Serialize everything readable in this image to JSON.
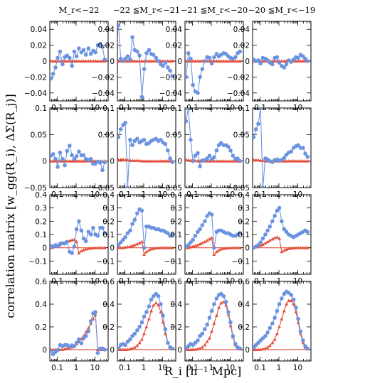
{
  "figure": {
    "ylabel": "correlation matrix  [w_gg(R_i), ΔΣ(R_j)]",
    "xlabel": "R_i  [h⁻¹ Mpc]"
  },
  "colors": {
    "observed": "#6b93e0",
    "model": "#e5503c",
    "zero_line": "#e5503c"
  },
  "chart_data": {
    "type": "scatter",
    "x_scale": "log",
    "xlim": [
      0.04,
      50
    ],
    "x_ticks": [
      0.1,
      1,
      10
    ],
    "x_tick_labels": [
      "0.1",
      "1",
      "10"
    ],
    "columns": [
      {
        "title": "M_r<−22"
      },
      {
        "title": "−22 ≦M_r<−21"
      },
      {
        "title": "−21 ≦M_r<−20"
      },
      {
        "title": "−20 ≦M_r<−19"
      }
    ],
    "rows": [
      {
        "ylim": [
          -0.05,
          0.05
        ],
        "y_ticks": [
          -0.04,
          -0.02,
          0,
          0.02,
          0.04
        ],
        "y_tick_labels": [
          "−0.04",
          "−0.02",
          "0",
          "0.02",
          "0.04"
        ]
      },
      {
        "ylim": [
          -0.05,
          0.1
        ],
        "y_ticks": [
          -0.05,
          0,
          0.05,
          0.1
        ],
        "y_tick_labels": [
          "−0.05",
          "0",
          "0.05",
          "0.1"
        ]
      },
      {
        "ylim": [
          -0.2,
          0.4
        ],
        "y_ticks": [
          -0.1,
          0,
          0.1,
          0.2,
          0.3,
          0.4
        ],
        "y_tick_labels": [
          "−0.1",
          "0",
          "0.1",
          "0.2",
          "0.3",
          "0.4"
        ]
      },
      {
        "ylim": [
          -0.1,
          0.6
        ],
        "y_ticks": [
          0,
          0.2,
          0.4,
          0.6
        ],
        "y_tick_labels": [
          "0",
          "0.2",
          "0.4",
          "0.6"
        ]
      }
    ],
    "x": [
      0.045,
      0.06,
      0.08,
      0.105,
      0.14,
      0.19,
      0.25,
      0.33,
      0.45,
      0.6,
      0.8,
      1.05,
      1.4,
      1.9,
      2.5,
      3.3,
      4.5,
      6,
      8,
      10.5,
      14,
      19,
      25,
      33
    ],
    "panels": [
      [
        {
          "observed": [
            -0.022,
            -0.016,
            -0.008,
            0.004,
            0.012,
            -0.004,
            0.005,
            0.007,
            0.004,
            -0.006,
            0.012,
            0.006,
            0.016,
            0.011,
            0.014,
            0.008,
            0.016,
            0.009,
            0.013,
            0.011,
            0.02,
            0.021,
            0.018,
            0.002
          ],
          "model": [
            0,
            0,
            0,
            0,
            0,
            0,
            0,
            0,
            0,
            0,
            0,
            0,
            0,
            0,
            0,
            0,
            0,
            0,
            0,
            0,
            0,
            0,
            0,
            0
          ]
        },
        {
          "observed": [
            0.01,
            0.013,
            0.004,
            -0.011,
            0.016,
            0.004,
            -0.008,
            0.019,
            0.029,
            0.011,
            0.004,
            0.009,
            0.018,
            0.011,
            0.011,
            0.004,
            0.002,
            0.004,
            -0.005,
            -0.005,
            -0.001,
            -0.003,
            -0.017,
            -0.002
          ],
          "model": [
            0,
            0,
            0,
            0,
            0,
            0,
            0,
            0,
            0,
            0,
            0,
            0,
            0,
            0,
            0,
            0,
            0,
            0,
            0,
            0,
            0,
            0,
            0,
            0
          ]
        },
        {
          "observed": [
            0.015,
            0.008,
            0.02,
            0.01,
            0.03,
            0.035,
            0.032,
            0.045,
            -0.03,
            -0.04,
            0.01,
            0.14,
            0.2,
            0.13,
            0.07,
            0.05,
            0.12,
            0.1,
            0.15,
            0.1,
            0.09,
            0.15,
            0.15,
            0.11
          ],
          "model": [
            0.0,
            0.005,
            0.01,
            0.015,
            0.022,
            0.03,
            0.037,
            0.045,
            0.052,
            0.058,
            0.06,
            0.045,
            -0.04,
            -0.025,
            -0.016,
            -0.01,
            -0.006,
            -0.004,
            -0.002,
            -0.001,
            0,
            0,
            0,
            0
          ]
        },
        {
          "observed": [
            -0.012,
            -0.04,
            -0.02,
            -0.004,
            0.04,
            0.03,
            0.04,
            0.04,
            0.025,
            0.038,
            0.03,
            0.06,
            0.09,
            0.055,
            0.1,
            0.12,
            0.16,
            0.25,
            0.32,
            0.33,
            -0.03,
            0.01,
            0.01,
            0.0
          ],
          "model": [
            0,
            0,
            0,
            0,
            0,
            0.002,
            0.004,
            0.008,
            0.014,
            0.022,
            0.034,
            0.05,
            0.07,
            0.095,
            0.12,
            0.155,
            0.19,
            0.23,
            0.27,
            0.31,
            0.0,
            0.0,
            0.0,
            0.0
          ]
        }
      ],
      [
        {
          "observed": [
            0.045,
            0.003,
            0.0,
            0.003,
            0.006,
            0.002,
            0.03,
            0.014,
            0.012,
            0.007,
            -0.045,
            -0.01,
            0.01,
            0.014,
            0.009,
            0.008,
            0.004,
            0.0,
            -0.004,
            -0.006,
            -0.002,
            -0.008,
            -0.012,
            -0.019
          ],
          "model": [
            0,
            0,
            0,
            0,
            0,
            0,
            0,
            0,
            0,
            0,
            0,
            0,
            0,
            0,
            0,
            0,
            0,
            0,
            0,
            0,
            0,
            0,
            0,
            0
          ]
        },
        {
          "observed": [
            0.045,
            0.06,
            0.068,
            0.072,
            -0.05,
            0.04,
            0.03,
            0.038,
            0.042,
            0.035,
            0.038,
            0.04,
            0.032,
            0.034,
            0.038,
            0.04,
            0.042,
            0.038,
            0.04,
            0.035,
            0.032,
            0.02,
            0.005,
            -0.002
          ],
          "model": [
            0.002,
            0.003,
            0.003,
            0.002,
            0.002,
            0.001,
            0.001,
            0.001,
            0.001,
            0.001,
            0,
            0,
            0,
            0,
            0,
            0,
            0,
            0,
            0,
            0,
            0,
            0,
            0,
            0
          ]
        },
        {
          "observed": [
            0.02,
            0.04,
            0.06,
            0.08,
            0.11,
            0.13,
            0.18,
            0.21,
            0.26,
            0.29,
            0.28,
            0.0,
            0.16,
            0.16,
            0.15,
            0.15,
            0.14,
            0.14,
            0.13,
            0.13,
            0.12,
            0.11,
            0.09,
            0.1
          ],
          "model": [
            0.0,
            0.0,
            0.0,
            0.003,
            0.006,
            0.01,
            0.015,
            0.021,
            0.028,
            0.036,
            0.045,
            -0.05,
            -0.03,
            -0.018,
            -0.01,
            -0.006,
            -0.003,
            -0.002,
            -0.001,
            0,
            0,
            0,
            0,
            0
          ]
        },
        {
          "observed": [
            0.01,
            0.04,
            0.05,
            0.04,
            0.07,
            0.09,
            0.12,
            0.14,
            0.17,
            0.2,
            0.24,
            0.29,
            0.33,
            0.38,
            0.44,
            0.47,
            0.49,
            0.47,
            0.4,
            0.3,
            0.18,
            0.06,
            0.02,
            0.01
          ],
          "model": [
            0,
            0,
            0,
            0,
            0.002,
            0.005,
            0.01,
            0.02,
            0.035,
            0.06,
            0.09,
            0.14,
            0.2,
            0.27,
            0.34,
            0.39,
            0.41,
            0.39,
            0.33,
            0.24,
            0.14,
            0.06,
            0.02,
            0.005
          ]
        }
      ],
      [
        {
          "observed": [
            -0.02,
            0.01,
            0.003,
            -0.03,
            -0.038,
            -0.04,
            -0.02,
            -0.01,
            0.0,
            0.005,
            0.004,
            -0.003,
            0.005,
            0.009,
            0.006,
            0.008,
            0.01,
            0.009,
            0.006,
            0.004,
            0.003,
            0.005,
            0.01,
            0.012
          ],
          "model": [
            0,
            0,
            0,
            0,
            0,
            0,
            0,
            0,
            0,
            0,
            0,
            0,
            0,
            0,
            0,
            0,
            0,
            0,
            0,
            0,
            0,
            0,
            0,
            0
          ]
        },
        {
          "observed": [
            0.075,
            0.1,
            0.04,
            0.0,
            0.01,
            0.015,
            -0.01,
            0.001,
            0.002,
            0.005,
            0.01,
            0.003,
            0.007,
            0.02,
            0.03,
            0.034,
            0.03,
            0.03,
            0.027,
            0.02,
            0.01,
            0.004,
            0.005,
            0.0
          ],
          "model": [
            0.002,
            0.002,
            0.001,
            0.001,
            0.001,
            0,
            0,
            0,
            0,
            0,
            0,
            0,
            0,
            0,
            0,
            0,
            0,
            0,
            0,
            0,
            0,
            0,
            0,
            0
          ]
        },
        {
          "observed": [
            0.01,
            0.02,
            0.04,
            0.06,
            0.09,
            0.12,
            0.14,
            0.17,
            0.2,
            0.24,
            0.26,
            0.25,
            0.0,
            0.12,
            0.13,
            0.13,
            0.12,
            0.11,
            0.11,
            0.1,
            0.09,
            0.09,
            0.1,
            0.11
          ],
          "model": [
            0.0,
            0.0,
            0.005,
            0.01,
            0.015,
            0.02,
            0.028,
            0.036,
            0.045,
            0.055,
            0.065,
            0.075,
            -0.05,
            -0.03,
            -0.018,
            -0.01,
            -0.006,
            -0.003,
            -0.002,
            -0.001,
            0,
            0,
            0,
            0
          ]
        },
        {
          "observed": [
            0.01,
            0.03,
            0.05,
            0.04,
            0.06,
            0.08,
            0.12,
            0.14,
            0.18,
            0.22,
            0.28,
            0.34,
            0.4,
            0.45,
            0.48,
            0.49,
            0.47,
            0.42,
            0.33,
            0.24,
            0.12,
            0.05,
            0.02,
            0.01
          ],
          "model": [
            0,
            0,
            0,
            0,
            0.002,
            0.005,
            0.01,
            0.02,
            0.04,
            0.07,
            0.1,
            0.16,
            0.23,
            0.3,
            0.37,
            0.41,
            0.42,
            0.39,
            0.31,
            0.21,
            0.11,
            0.04,
            0.01,
            0.005
          ]
        }
      ],
      [
        {
          "observed": [
            0.002,
            0.0,
            0.001,
            -0.003,
            0.004,
            0.003,
            0.001,
            -0.002,
            -0.004,
            0.004,
            0.005,
            -0.002,
            -0.006,
            -0.008,
            -0.004,
            0.001,
            -0.001,
            0.002,
            0.005,
            0.004,
            0.008,
            0.006,
            0.003,
            0.0
          ],
          "model": [
            0,
            0,
            0,
            0,
            0,
            0,
            0,
            0,
            0,
            0,
            0,
            0,
            0,
            0,
            0,
            0,
            0,
            0,
            0,
            0,
            0,
            0,
            0,
            0
          ]
        },
        {
          "observed": [
            0.045,
            0.06,
            0.07,
            0.1,
            -0.05,
            0.005,
            0.003,
            0.0,
            -0.002,
            0.002,
            0.003,
            0.001,
            0.002,
            0.006,
            0.012,
            0.016,
            0.018,
            0.025,
            0.028,
            0.03,
            0.025,
            0.025,
            0.014,
            0.008
          ],
          "model": [
            0.002,
            0.002,
            0.002,
            0.001,
            0.001,
            0,
            0,
            0,
            0,
            0,
            0,
            0,
            0,
            0,
            0,
            0,
            0,
            0,
            0,
            0,
            0,
            0,
            0,
            0
          ]
        },
        {
          "observed": [
            0.0,
            0.01,
            0.02,
            0.04,
            0.07,
            0.1,
            0.13,
            0.16,
            0.2,
            0.24,
            0.28,
            0.3,
            0.2,
            0.14,
            0.12,
            0.1,
            0.09,
            0.08,
            0.09,
            0.1,
            0.11,
            0.12,
            0.13,
            0.12
          ],
          "model": [
            0.0,
            0.005,
            0.01,
            0.018,
            0.025,
            0.035,
            0.045,
            0.055,
            0.065,
            0.075,
            0.08,
            0.07,
            -0.03,
            -0.02,
            -0.012,
            -0.007,
            -0.004,
            -0.002,
            -0.001,
            0,
            0,
            0,
            0,
            0
          ]
        },
        {
          "observed": [
            0.02,
            0.04,
            0.06,
            0.08,
            0.1,
            0.12,
            0.15,
            0.19,
            0.23,
            0.28,
            0.34,
            0.4,
            0.45,
            0.49,
            0.51,
            0.5,
            0.48,
            0.44,
            0.37,
            0.27,
            0.16,
            0.08,
            0.03,
            0.01
          ],
          "model": [
            0,
            0,
            0,
            0.002,
            0.005,
            0.01,
            0.02,
            0.035,
            0.06,
            0.09,
            0.14,
            0.2,
            0.27,
            0.34,
            0.4,
            0.43,
            0.43,
            0.4,
            0.33,
            0.24,
            0.14,
            0.06,
            0.02,
            0.005
          ]
        }
      ]
    ]
  }
}
